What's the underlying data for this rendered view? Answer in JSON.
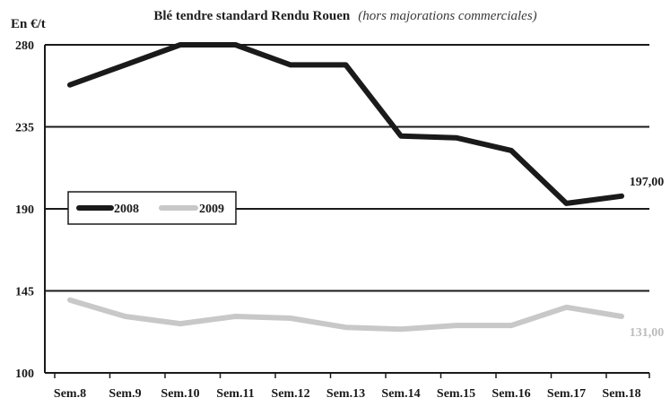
{
  "chart_data": {
    "type": "line",
    "title": "Blé tendre standard Rendu Rouen",
    "subtitle": "(hors majorations commerciales)",
    "ylabel": "En €/t",
    "xlabel": "",
    "categories": [
      "Sem.8",
      "Sem.9",
      "Sem.10",
      "Sem.11",
      "Sem.12",
      "Sem.13",
      "Sem.14",
      "Sem.15",
      "Sem.16",
      "Sem.17",
      "Sem.18"
    ],
    "ylim": [
      100,
      280
    ],
    "yticks": [
      "280",
      "235",
      "190",
      "145",
      "100"
    ],
    "grid": true,
    "legend": "left",
    "series": [
      {
        "name": "2008",
        "color": "#1a1a1a",
        "values": [
          258,
          269,
          280,
          280,
          269,
          269,
          230,
          229,
          222,
          193,
          197
        ],
        "end_label": "197,00"
      },
      {
        "name": "2009",
        "color": "#c8c8c8",
        "values": [
          140,
          131,
          127,
          131,
          130,
          125,
          124,
          126,
          126,
          136,
          131
        ],
        "end_label": "131,00"
      }
    ]
  }
}
